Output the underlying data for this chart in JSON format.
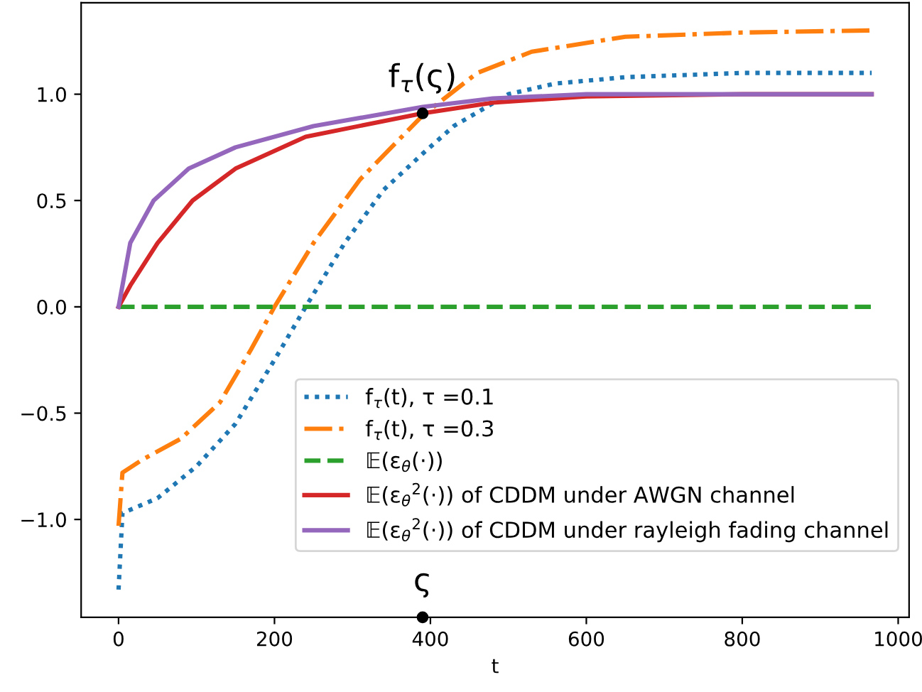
{
  "chart_data": {
    "type": "line",
    "xlabel": "t",
    "xlim": [
      -48,
      1014
    ],
    "ylim": [
      -1.46,
      1.43
    ],
    "xticks": [
      0,
      200,
      400,
      600,
      800,
      1000
    ],
    "yticks": [
      {
        "value": -1.0,
        "label": "−1.0"
      },
      {
        "value": -0.5,
        "label": "−0.5"
      },
      {
        "value": 0.0,
        "label": "0.0"
      },
      {
        "value": 0.5,
        "label": "0.5"
      },
      {
        "value": 1.0,
        "label": "1.0"
      }
    ],
    "grid": false,
    "legend": "bottom right",
    "series": [
      {
        "name": "f$_{τ}$(t), τ =0.1",
        "color": "#1f77b4",
        "line_style": "dotted",
        "x": [
          0,
          5,
          50,
          100,
          150,
          200,
          240,
          290,
          340,
          390,
          430,
          500,
          560,
          650,
          800,
          966
        ],
        "values": [
          -1.33,
          -0.97,
          -0.9,
          -0.75,
          -0.55,
          -0.25,
          0,
          0.3,
          0.55,
          0.72,
          0.85,
          1.0,
          1.05,
          1.08,
          1.1,
          1.1
        ]
      },
      {
        "name": "f$_{τ}$(t), τ =0.3",
        "color": "#ff7f0e",
        "line_style": "dashdot",
        "x": [
          0,
          5,
          30,
          80,
          130,
          170,
          200,
          250,
          310,
          390,
          460,
          530,
          650,
          800,
          966
        ],
        "values": [
          -1.03,
          -0.78,
          -0.72,
          -0.62,
          -0.45,
          -0.2,
          0,
          0.3,
          0.6,
          0.9,
          1.1,
          1.2,
          1.27,
          1.29,
          1.3
        ]
      },
      {
        "name": "𝔼(ε$_{θ}$(·))",
        "color": "#2ca02c",
        "line_style": "dashed",
        "x": [
          0,
          966
        ],
        "values": [
          0,
          0
        ]
      },
      {
        "name": "𝔼(ε$_{θ}$$^{2}$(·)) of CDDM under AWGN channel",
        "color": "#d62728",
        "line_style": "solid",
        "x": [
          0,
          15,
          50,
          95,
          150,
          240,
          390,
          480,
          600,
          800,
          966
        ],
        "values": [
          0,
          0.1,
          0.3,
          0.5,
          0.65,
          0.8,
          0.91,
          0.96,
          0.99,
          1.0,
          1.0
        ]
      },
      {
        "name": "𝔼(ε$_{θ}$$^{2}$(·)) of CDDM under rayleigh fading channel",
        "color": "#9467bd",
        "line_style": "solid",
        "x": [
          0,
          15,
          45,
          90,
          150,
          250,
          390,
          480,
          600,
          966
        ],
        "values": [
          0,
          0.3,
          0.5,
          0.65,
          0.75,
          0.85,
          0.94,
          0.98,
          1.0,
          1.0
        ]
      },
      {
        "type": "scatter",
        "color": "#000000",
        "marker": "circle",
        "x": [
          390,
          390
        ],
        "values": [
          0.91,
          -1.46
        ]
      }
    ],
    "annotations": [
      {
        "text": "f$_{τ}$(ς)",
        "x": 390,
        "y": 0.91
      },
      {
        "text": "ς",
        "x": 390,
        "y": -1.46
      }
    ]
  }
}
